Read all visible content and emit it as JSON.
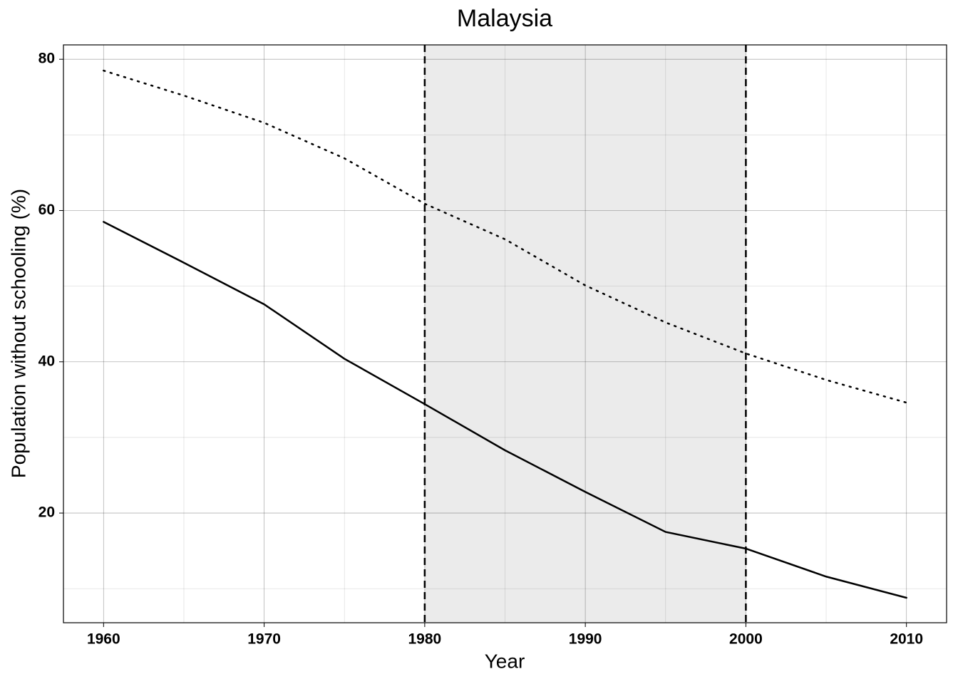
{
  "chart_data": {
    "type": "line",
    "title": "Malaysia",
    "x_label": "Year",
    "y_label": "Population without schooling (%)",
    "x": [
      1960,
      1965,
      1970,
      1975,
      1980,
      1985,
      1990,
      1995,
      2000,
      2005,
      2010
    ],
    "series": [
      {
        "color": "#000000",
        "linestyle": "solid",
        "values": [
          58.5,
          53.1,
          47.6,
          40.4,
          34.4,
          28.3,
          22.8,
          17.5,
          15.3,
          11.6,
          8.8
        ]
      },
      {
        "color": "#000000",
        "linestyle": "dotted",
        "values": [
          78.5,
          75.2,
          71.6,
          66.9,
          60.9,
          56.2,
          50.1,
          45.2,
          41.1,
          37.6,
          34.6
        ]
      }
    ],
    "xlim": [
      1957.5,
      2012.5
    ],
    "ylim": [
      5.5,
      81.9
    ],
    "xticks": [
      1960,
      1970,
      1980,
      1990,
      2000,
      2010
    ],
    "yticks": [
      20,
      40,
      60,
      80
    ],
    "grid": true,
    "shaded_region": [
      1980,
      2000
    ],
    "shade_color": "#ebebeb"
  }
}
